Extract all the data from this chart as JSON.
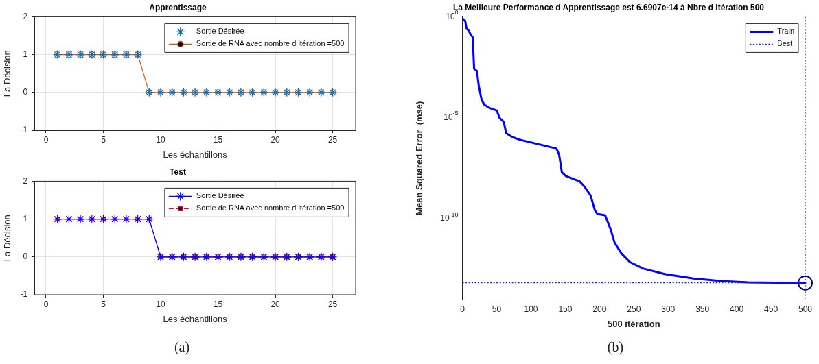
{
  "chart_data": [
    {
      "type": "line",
      "title": "Apprentissage",
      "xlabel": "Les échantillons",
      "ylabel": "La Décision",
      "x": [
        1,
        2,
        3,
        4,
        5,
        6,
        7,
        8,
        9,
        10,
        11,
        12,
        13,
        14,
        15,
        16,
        17,
        18,
        19,
        20,
        21,
        22,
        23,
        24,
        25
      ],
      "series": [
        {
          "name": "Sortie Désirée",
          "type": "scatter",
          "marker": "cross",
          "color": "#0072bd",
          "values": [
            1,
            1,
            1,
            1,
            1,
            1,
            1,
            1,
            0,
            0,
            0,
            0,
            0,
            0,
            0,
            0,
            0,
            0,
            0,
            0,
            0,
            0,
            0,
            0,
            0
          ]
        },
        {
          "name": "Sortie de RNA avec nombre d itération =500",
          "type": "line",
          "marker": "circle",
          "line_style": "solid",
          "color": "#d95319",
          "values": [
            1,
            1,
            1,
            1,
            1,
            1,
            1,
            1,
            0,
            0,
            0,
            0,
            0,
            0,
            0,
            0,
            0,
            0,
            0,
            0,
            0,
            0,
            0,
            0,
            0
          ]
        }
      ],
      "xlim": [
        -1,
        27
      ],
      "xticks": [
        0,
        5,
        10,
        15,
        20,
        25
      ],
      "ylim": [
        -1,
        2
      ],
      "yticks": [
        -1,
        0,
        1,
        2
      ],
      "grid": true,
      "legend": "top right"
    },
    {
      "type": "line",
      "title": "Test",
      "xlabel": "Les échantillons",
      "ylabel": "La Décision",
      "x": [
        1,
        2,
        3,
        4,
        5,
        6,
        7,
        8,
        9,
        10,
        11,
        12,
        13,
        14,
        15,
        16,
        17,
        18,
        19,
        20,
        21,
        22,
        23,
        24,
        25
      ],
      "series": [
        {
          "name": "Sortie Désirée",
          "type": "line",
          "marker": "cross",
          "line_style": "solid",
          "color": "#0000ff",
          "values": [
            1,
            1,
            1,
            1,
            1,
            1,
            1,
            1,
            1,
            0,
            0,
            0,
            0,
            0,
            0,
            0,
            0,
            0,
            0,
            0,
            0,
            0,
            0,
            0,
            0
          ]
        },
        {
          "name": "Sortie de RNA avec nombre d itération =500",
          "type": "line",
          "marker": "square",
          "line_style": "dashed",
          "color": "#ff0000",
          "values": [
            1,
            1,
            1,
            1,
            1,
            1,
            1,
            1,
            1,
            0,
            0,
            0,
            0,
            0,
            0,
            0,
            0,
            0,
            0,
            0,
            0,
            0,
            0,
            0,
            0
          ]
        }
      ],
      "xlim": [
        -1,
        27
      ],
      "xticks": [
        0,
        5,
        10,
        15,
        20,
        25
      ],
      "ylim": [
        -1,
        2
      ],
      "yticks": [
        -1,
        0,
        1,
        2
      ],
      "grid": true,
      "legend": "top right",
      "annotations": [
        "(a)"
      ]
    },
    {
      "type": "line",
      "title": "La Meilleure Performance d Apprentissage est 6.6907e-14 à Nbre d itération 500",
      "xlabel": "500 itération",
      "ylabel": "Mean Squared Error  (mse)",
      "log": "y",
      "series": [
        {
          "name": "Train",
          "type": "line",
          "marker": "none",
          "line_style": "solid",
          "color": "#0000ff",
          "x": [
            1,
            4,
            6,
            9,
            12,
            15,
            17,
            21,
            24,
            28,
            32,
            40,
            50,
            54,
            60,
            64,
            73,
            83,
            137,
            141,
            145,
            151,
            171,
            179,
            187,
            193,
            197,
            208,
            216,
            222,
            232,
            244,
            264,
            296,
            337,
            377,
            417,
            457,
            500
          ],
          "values": [
            0.78,
            0.63,
            0.26,
            0.21,
            0.13,
            0.098,
            0.0027,
            0.0021,
            0.00035,
            7.6e-05,
            4.4e-05,
            3e-05,
            2.3e-05,
            1e-05,
            6.3e-06,
            1.7e-06,
            1.1e-06,
            8.3e-07,
            3e-07,
            1.5e-07,
            2e-08,
            1.3e-08,
            7.1e-09,
            3.5e-09,
            1.4e-09,
            2.7e-10,
            1.7e-10,
            1.5e-10,
            3.1e-11,
            6.5e-12,
            1.9e-12,
            7.2e-13,
            3.4e-13,
            1.8e-13,
            1.1e-13,
            8.3e-14,
            7.1e-14,
            6.8e-14,
            6.6907e-14
          ]
        },
        {
          "type": "scatter",
          "marker": "circle",
          "color": "#000080",
          "x": [
            500
          ],
          "values": [
            6.6907e-14
          ]
        }
      ],
      "xlim": [
        0,
        500
      ],
      "xticks": [
        0,
        50,
        100,
        150,
        200,
        250,
        300,
        350,
        400,
        450,
        500
      ],
      "ylim": [
        1e-14,
        1
      ],
      "yticks": [
        {
          "value": 1,
          "label": "10$^{0}$"
        },
        {
          "value": 1e-05,
          "label": "10$^{-5}$"
        },
        {
          "value": 1e-10,
          "label": "10$^{-10}$"
        }
      ],
      "ref_lines": [
        {
          "axis": "y",
          "value": 6.6907e-14,
          "label": "Best",
          "color": "#1c1cc8",
          "line_style": "dotted"
        },
        {
          "axis": "x",
          "value": 500,
          "color": "#1c1cc8",
          "line_style": "dotted"
        }
      ],
      "legend": "top right",
      "annotations": [
        "(b)"
      ]
    }
  ]
}
